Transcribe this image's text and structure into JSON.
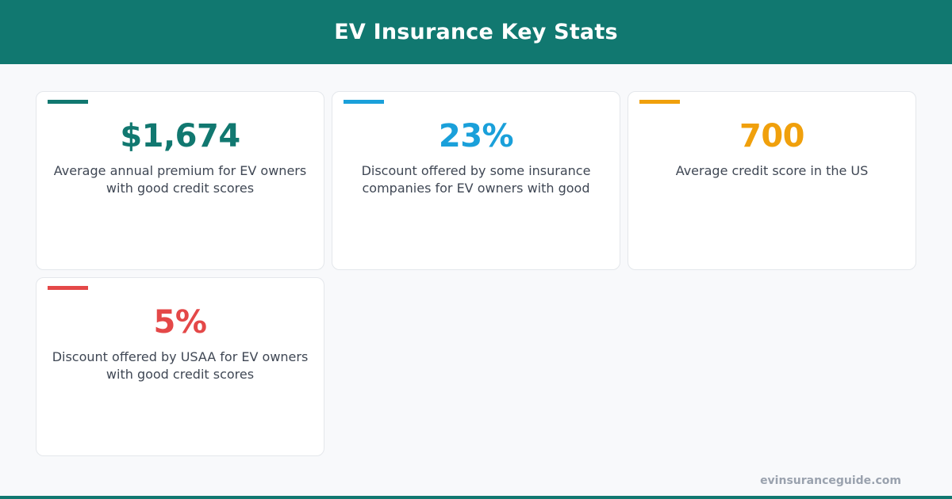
{
  "header": {
    "title": "EV Insurance Key Stats"
  },
  "colors": {
    "header_bg": "#117870",
    "stat_1": "#117870",
    "stat_2": "#1aa0da",
    "stat_3": "#f0a00c",
    "stat_4": "#e44848",
    "description_text": "#3f4754",
    "footer_text": "#9aa2ae"
  },
  "stats": [
    {
      "value": "$1,674",
      "description": "Average annual premium for EV owners with good credit scores",
      "color": "#117870"
    },
    {
      "value": "23%",
      "description": "Discount offered by some insurance companies for EV owners with good",
      "color": "#1aa0da"
    },
    {
      "value": "700",
      "description": "Average credit score in the US",
      "color": "#f0a00c"
    },
    {
      "value": "5%",
      "description": "Discount offered by USAA for EV owners with good credit scores",
      "color": "#e44848"
    }
  ],
  "footer": {
    "site": "evinsuranceguide.com"
  }
}
